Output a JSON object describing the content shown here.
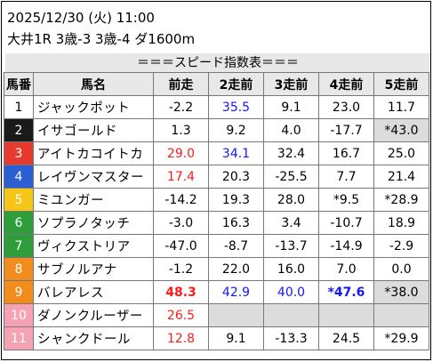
{
  "header": {
    "line1": "2025/12/30 (火) 11:00",
    "line2": "大井1R 3歳-3 3歳-4 ダ1600m"
  },
  "table_title": "＝＝＝スピード指数表＝＝＝",
  "columns": [
    "馬番",
    "馬名",
    "前走",
    "2走前",
    "3走前",
    "4走前",
    "5走前"
  ],
  "colors": {
    "gate": [
      "#ffffff",
      "#1a1a1a",
      "#e8392e",
      "#2b5fd3",
      "#f5c518",
      "#2e9e3b",
      "#f28c1c",
      "#f5a2b4"
    ],
    "red_text": "#ff1a1a",
    "blue_text": "#1414ff",
    "gray_cell": "#dcdcdc"
  },
  "rows": [
    {
      "no": "1",
      "gate": 1,
      "name": "ジャックポット",
      "vals": [
        {
          "v": "-2.2"
        },
        {
          "v": "35.5",
          "c": "blue"
        },
        {
          "v": "9.1"
        },
        {
          "v": "23.0"
        },
        {
          "v": "11.7"
        }
      ]
    },
    {
      "no": "2",
      "gate": 2,
      "name": "イサゴールド",
      "vals": [
        {
          "v": "1.3"
        },
        {
          "v": "9.2"
        },
        {
          "v": "4.0"
        },
        {
          "v": "-17.7"
        },
        {
          "v": "*43.0",
          "g": true
        }
      ]
    },
    {
      "no": "3",
      "gate": 3,
      "name": "アイトカコイトカ",
      "vals": [
        {
          "v": "29.0",
          "c": "red"
        },
        {
          "v": "34.1",
          "c": "blue"
        },
        {
          "v": "32.4"
        },
        {
          "v": "16.7"
        },
        {
          "v": "25.0"
        }
      ]
    },
    {
      "no": "4",
      "gate": 4,
      "name": "レイヴンマスター",
      "vals": [
        {
          "v": "17.4",
          "c": "red"
        },
        {
          "v": "20.3"
        },
        {
          "v": "-25.5"
        },
        {
          "v": "7.7"
        },
        {
          "v": "21.4"
        }
      ]
    },
    {
      "no": "5",
      "gate": 5,
      "name": "ミユンガー",
      "vals": [
        {
          "v": "-14.2"
        },
        {
          "v": "19.3"
        },
        {
          "v": "28.0"
        },
        {
          "v": "*9.5"
        },
        {
          "v": "*28.9"
        }
      ]
    },
    {
      "no": "6",
      "gate": 6,
      "name": "ソプラノタッチ",
      "vals": [
        {
          "v": "-3.0"
        },
        {
          "v": "16.3"
        },
        {
          "v": "3.4"
        },
        {
          "v": "-10.7"
        },
        {
          "v": "18.9"
        }
      ]
    },
    {
      "no": "7",
      "gate": 6,
      "name": "ヴィクストリア",
      "vals": [
        {
          "v": "-47.0"
        },
        {
          "v": "-8.7"
        },
        {
          "v": "-13.7"
        },
        {
          "v": "-14.9"
        },
        {
          "v": "-2.9"
        }
      ]
    },
    {
      "no": "8",
      "gate": 7,
      "name": "サブノルアナ",
      "vals": [
        {
          "v": "-1.2"
        },
        {
          "v": "22.0"
        },
        {
          "v": "16.0"
        },
        {
          "v": "7.0"
        },
        {
          "v": "0.0"
        }
      ]
    },
    {
      "no": "9",
      "gate": 7,
      "name": "バレアレス",
      "vals": [
        {
          "v": "48.3",
          "c": "red",
          "b": true
        },
        {
          "v": "42.9",
          "c": "blue"
        },
        {
          "v": "40.0",
          "c": "blue"
        },
        {
          "v": "*47.6",
          "c": "blue",
          "b": true
        },
        {
          "v": "*38.0",
          "g": true
        }
      ]
    },
    {
      "no": "10",
      "gate": 8,
      "name": "ダノンクルーザー",
      "vals": [
        {
          "v": "26.5",
          "c": "red"
        },
        {
          "v": "",
          "g": true
        },
        {
          "v": "",
          "g": true
        },
        {
          "v": "",
          "g": true
        },
        {
          "v": "",
          "g": true
        }
      ]
    },
    {
      "no": "11",
      "gate": 8,
      "name": "シャンクドール",
      "vals": [
        {
          "v": "12.8",
          "c": "red"
        },
        {
          "v": "9.1"
        },
        {
          "v": "-13.3"
        },
        {
          "v": "24.5"
        },
        {
          "v": "*29.9"
        }
      ]
    }
  ]
}
